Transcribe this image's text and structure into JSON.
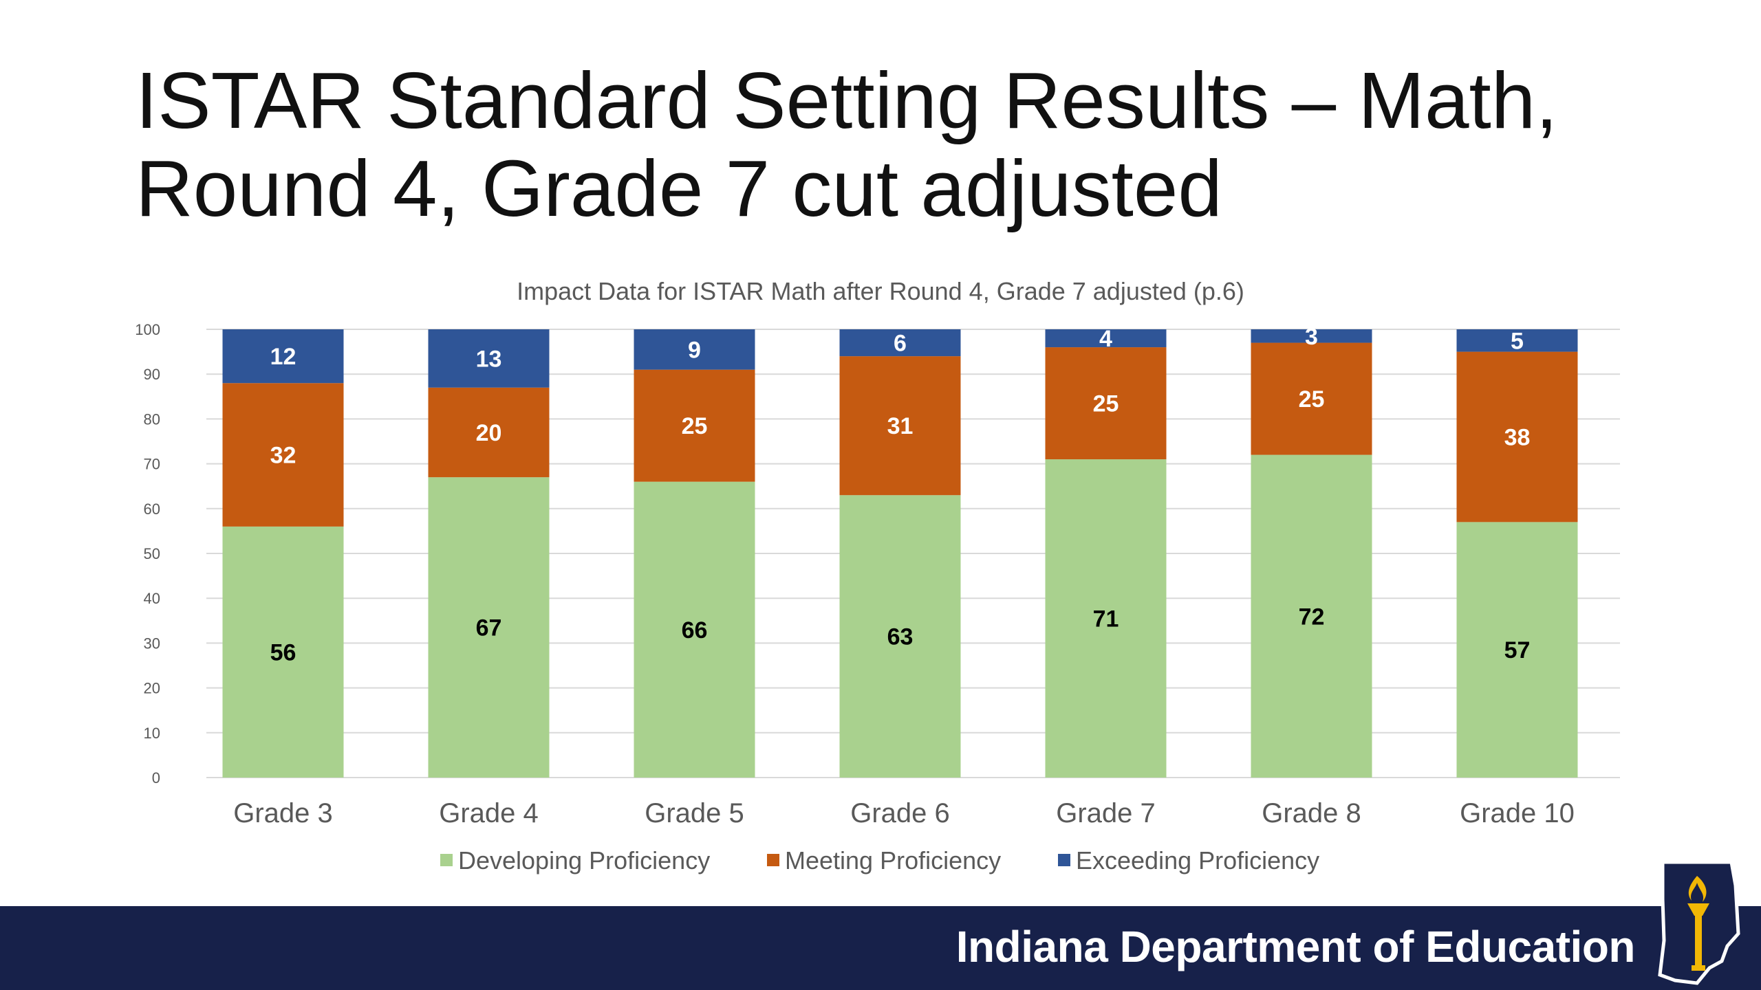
{
  "slide": {
    "title_line1": "ISTAR Standard Setting Results – Math,",
    "title_line2": "Round 4, Grade 7 cut adjusted"
  },
  "footer": {
    "org_name": "Indiana Department of Education",
    "bar_color": "#17214a",
    "logo_icon": "indiana-torch-logo-icon"
  },
  "chart_data": {
    "type": "bar",
    "stacked": true,
    "title": "Impact Data for ISTAR Math after Round 4, Grade 7 adjusted (p.6)",
    "xlabel": "",
    "ylabel": "",
    "ylim": [
      0,
      100
    ],
    "yticks": [
      0,
      10,
      20,
      30,
      40,
      50,
      60,
      70,
      80,
      90,
      100
    ],
    "grid": true,
    "legend_position": "bottom",
    "categories": [
      "Grade 3",
      "Grade 4",
      "Grade 5",
      "Grade 6",
      "Grade 7",
      "Grade 8",
      "Grade 10"
    ],
    "series": [
      {
        "name": "Developing Proficiency",
        "color": "#a9d18e",
        "label_color": "#000000",
        "values": [
          56,
          67,
          66,
          63,
          71,
          72,
          57
        ]
      },
      {
        "name": "Meeting Proficiency",
        "color": "#c55a11",
        "label_color": "#ffffff",
        "values": [
          32,
          20,
          25,
          31,
          25,
          25,
          38
        ]
      },
      {
        "name": "Exceeding Proficiency",
        "color": "#2f5597",
        "label_color": "#ffffff",
        "values": [
          12,
          13,
          9,
          6,
          4,
          3,
          5
        ]
      }
    ]
  }
}
